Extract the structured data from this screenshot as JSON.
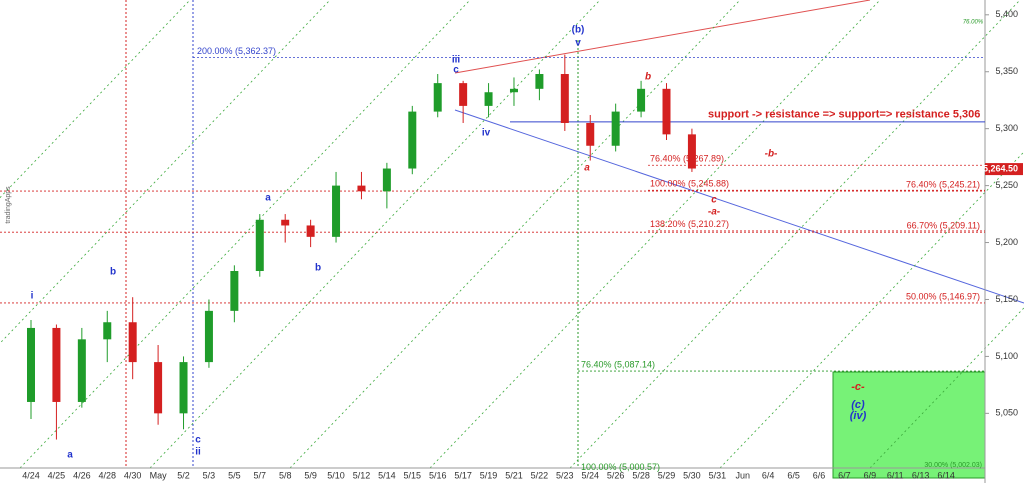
{
  "chart_data": {
    "type": "candlestick",
    "watermark": "tradingApps",
    "up_color": "#1f9c2a",
    "down_color": "#d42020",
    "categories": [
      "4/24",
      "4/25",
      "4/26",
      "4/28",
      "4/30",
      "May",
      "5/2",
      "5/3",
      "5/5",
      "5/7",
      "5/8",
      "5/9",
      "5/10",
      "5/12",
      "5/14",
      "5/15",
      "5/16",
      "5/17",
      "5/19",
      "5/21",
      "5/22",
      "5/23",
      "5/24",
      "5/26",
      "5/28",
      "5/29",
      "5/30",
      "5/31",
      "Jun",
      "6/4",
      "6/5",
      "6/6",
      "6/7",
      "6/9",
      "6/11",
      "6/13",
      "6/14"
    ],
    "open": [
      5060,
      5125,
      5060,
      5115,
      5130,
      5095,
      5050,
      5095,
      5140,
      5175,
      5220,
      5215,
      5205,
      5250,
      5245,
      5265,
      5315,
      5340,
      5320,
      5332,
      5335,
      5348,
      5305,
      5285,
      5315,
      5335,
      5295,
      null,
      null,
      null,
      null,
      null,
      null,
      null,
      null,
      null,
      null
    ],
    "high": [
      5132,
      5128,
      5125,
      5140,
      5152,
      5110,
      5100,
      5150,
      5180,
      5225,
      5225,
      5220,
      5262,
      5262,
      5270,
      5320,
      5348,
      5342,
      5340,
      5345,
      5352,
      5365,
      5312,
      5322,
      5342,
      5340,
      5300,
      null,
      null,
      null,
      null,
      null,
      null,
      null,
      null,
      null,
      null
    ],
    "low": [
      5045,
      5027,
      5055,
      5095,
      5080,
      5040,
      5036,
      5090,
      5130,
      5170,
      5200,
      5196,
      5200,
      5238,
      5230,
      5260,
      5310,
      5305,
      5310,
      5320,
      5325,
      5298,
      5272,
      5280,
      5310,
      5290,
      5262,
      null,
      null,
      null,
      null,
      null,
      null,
      null,
      null,
      null,
      null
    ],
    "close": [
      5125,
      5060,
      5115,
      5130,
      5095,
      5050,
      5095,
      5140,
      5175,
      5220,
      5215,
      5205,
      5250,
      5245,
      5265,
      5315,
      5340,
      5320,
      5332,
      5335,
      5348,
      5305,
      5285,
      5315,
      5335,
      5295,
      5265,
      null,
      null,
      null,
      null,
      null,
      null,
      null,
      null,
      null,
      null
    ],
    "ylim": [
      5002,
      5413
    ],
    "yticks": [
      {
        "value": 5050,
        "label": "5,050"
      },
      {
        "value": 5100,
        "label": "5,100"
      },
      {
        "value": 5150,
        "label": "5,150"
      },
      {
        "value": 5200,
        "label": "5,200"
      },
      {
        "value": 5250,
        "label": "5,250"
      },
      {
        "value": 5300,
        "label": "5,300"
      },
      {
        "value": 5350,
        "label": "5,350"
      },
      {
        "value": 5400,
        "label": "5,400"
      }
    ],
    "last_price": {
      "value": 5264.5,
      "label": "5,264.50"
    },
    "levels": [
      {
        "value": 5362.37,
        "label": "200.00% (5,362.37)",
        "color": "#3344cc"
      },
      {
        "value": 5306,
        "label": "support -> resistance => support=> resistance 5,306",
        "color": "#3344cc"
      },
      {
        "value": 5267.89,
        "label": "76.40% (5,267.89)",
        "color": "#d42020"
      },
      {
        "value": 5245.88,
        "label": "100.00% (5,245.88)",
        "color": "#d42020"
      },
      {
        "value": 5245.21,
        "label": "76.40% (5,245.21)",
        "color": "#d42020"
      },
      {
        "value": 5210.27,
        "label": "138.20% (5,210.27)",
        "color": "#d42020"
      },
      {
        "value": 5209.11,
        "label": "66.70% (5,209.11)",
        "color": "#d42020"
      },
      {
        "value": 5146.97,
        "label": "50.00% (5,146.97)",
        "color": "#d42020"
      },
      {
        "value": 5087.14,
        "label": "76.40% (5,087.14)",
        "color": "#2a9a2a"
      },
      {
        "value": 5000.57,
        "label": "100.00% (5,000.57)",
        "color": "#2a9a2a"
      },
      {
        "value": 5002.03,
        "label": "30.00% (5,002.03)",
        "color": "#2a9a2a"
      }
    ],
    "waves": [
      {
        "text": "i",
        "color": "#2233cc"
      },
      {
        "text": "a",
        "color": "#2233cc"
      },
      {
        "text": "b",
        "color": "#2233cc"
      },
      {
        "text": "c",
        "color": "#2233cc"
      },
      {
        "text": "ii",
        "color": "#2233cc"
      },
      {
        "text": "a",
        "color": "#2233cc"
      },
      {
        "text": "b",
        "color": "#2233cc"
      },
      {
        "text": "iii",
        "color": "#2233cc"
      },
      {
        "text": "c",
        "color": "#2233cc"
      },
      {
        "text": "iv",
        "color": "#2233cc"
      },
      {
        "text": "(b)",
        "color": "#2233cc"
      },
      {
        "text": "v",
        "color": "#2233cc"
      },
      {
        "text": "b",
        "color": "#d42020"
      },
      {
        "text": "a",
        "color": "#d42020"
      },
      {
        "text": "-b-",
        "color": "#d42020"
      },
      {
        "text": "c",
        "color": "#d42020"
      },
      {
        "text": "-a-",
        "color": "#d42020"
      },
      {
        "text": "-c-",
        "color": "#d42020"
      },
      {
        "text": "(c)",
        "color": "#2233cc"
      },
      {
        "text": "(iv)",
        "color": "#2233cc"
      },
      {
        "text": "76.00%",
        "color": "#2a9a2a"
      }
    ]
  }
}
